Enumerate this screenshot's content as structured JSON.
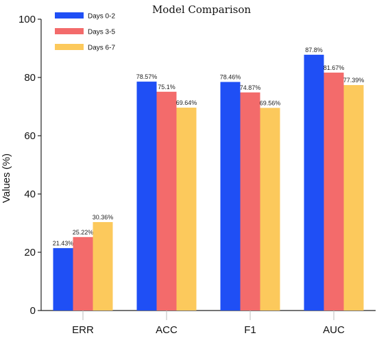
{
  "chart_data": {
    "type": "bar",
    "title": "Model Comparison",
    "xlabel": "",
    "ylabel": "Values (%)",
    "ylim": [
      0,
      100
    ],
    "yticks": [
      0,
      20,
      40,
      60,
      80,
      100
    ],
    "categories": [
      "ERR",
      "ACC",
      "F1",
      "AUC"
    ],
    "series": [
      {
        "name": "Days 0-2",
        "color": "#1f4ff5",
        "values": [
          21.43,
          78.57,
          78.46,
          87.8
        ],
        "labels": [
          "21.43%",
          "78.57%",
          "78.46%",
          "87.8%"
        ]
      },
      {
        "name": "Days 3-5",
        "color": "#f36b6b",
        "values": [
          25.22,
          75.1,
          74.87,
          81.67
        ],
        "labels": [
          "25.22%",
          "75.1%",
          "74.87%",
          "81.67%"
        ]
      },
      {
        "name": "Days 6-7",
        "color": "#fcc95c",
        "values": [
          30.36,
          69.64,
          69.56,
          77.39
        ],
        "labels": [
          "30.36%",
          "69.64%",
          "69.56%",
          "77.39%"
        ]
      }
    ],
    "legend_position": "top-left",
    "grid": false
  }
}
